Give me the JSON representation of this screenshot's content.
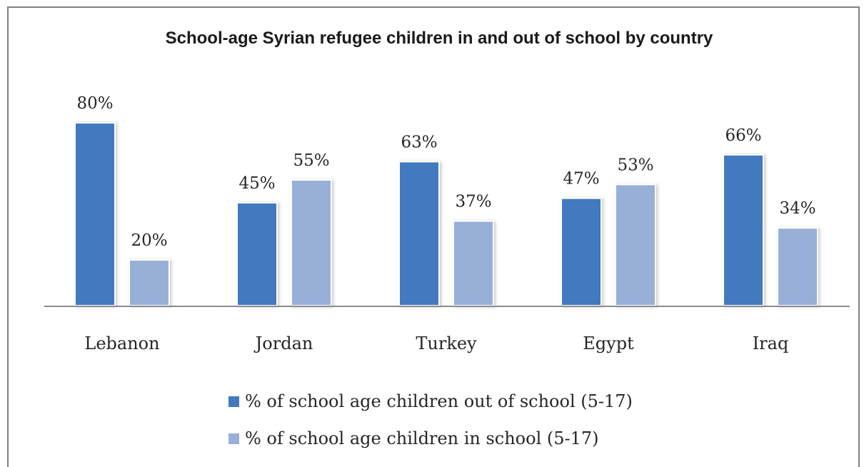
{
  "chart_data": {
    "type": "bar",
    "title": "School-age Syrian refugee children in and out of school by country",
    "categories": [
      "Lebanon",
      "Jordan",
      "Turkey",
      "Egypt",
      "Iraq"
    ],
    "series": [
      {
        "name": "% of school age children out of school (5-17)",
        "values": [
          80,
          45,
          63,
          47,
          66
        ],
        "labels": [
          "80%",
          "45%",
          "63%",
          "47%",
          "66%"
        ],
        "color": "#4279bf"
      },
      {
        "name": "% of school age children in school (5-17)",
        "values": [
          20,
          55,
          37,
          53,
          34
        ],
        "labels": [
          "20%",
          "55%",
          "37%",
          "53%",
          "34%"
        ],
        "color": "#98afd8"
      }
    ],
    "ylim": [
      0,
      100
    ],
    "grid": false,
    "legend_position": "bottom"
  }
}
